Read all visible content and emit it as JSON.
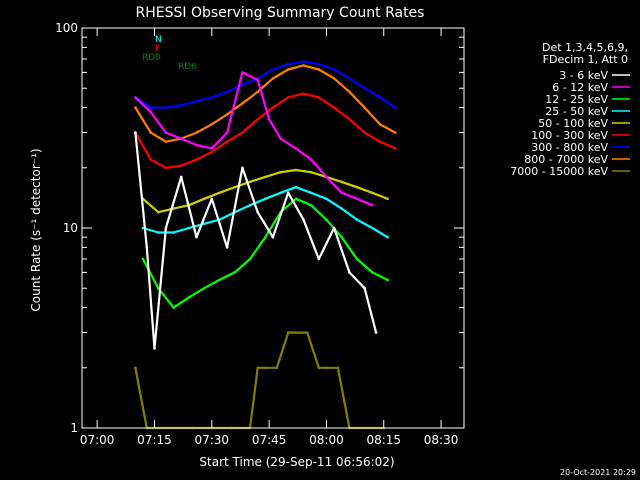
{
  "chart_data": {
    "type": "line",
    "title": "RHESSI Observing Summary Count Rates",
    "xlabel": "Start Time (29-Sep-11 06:56:02)",
    "ylabel": "Count Rate (s⁻¹ detector⁻¹)",
    "yscale": "log",
    "ylim": [
      1,
      100
    ],
    "xlim": [
      "06:56:02",
      "08:36:00"
    ],
    "x_ticks": [
      "07:00",
      "07:15",
      "07:30",
      "07:45",
      "08:00",
      "08:15",
      "08:30"
    ],
    "y_ticks": [
      "1",
      "10",
      "100"
    ],
    "legend_position": "right",
    "legend_header": [
      "Det 1,3,4,5,6,9,",
      "FDecim 1, Att 0"
    ],
    "flags": [
      {
        "label": "N",
        "color": "#00ffff"
      },
      {
        "label": "F",
        "color": "#ff0000"
      },
      {
        "label": "RD0",
        "color": "#008000"
      },
      {
        "label": "RD6",
        "color": "#008000"
      }
    ],
    "footer": "20-Oct-2021 20:29",
    "series": [
      {
        "name": "3 - 6 keV",
        "color": "#ffffff",
        "x": [
          "07:10",
          "07:13",
          "07:15",
          "07:18",
          "07:22",
          "07:26",
          "07:30",
          "07:34",
          "07:38",
          "07:42",
          "07:46",
          "07:50",
          "07:54",
          "07:58",
          "08:02",
          "08:06",
          "08:10",
          "08:13"
        ],
        "y": [
          30,
          8,
          2.5,
          10,
          18,
          9,
          14,
          8,
          20,
          12,
          9,
          15,
          11,
          7,
          10,
          6,
          5,
          3
        ]
      },
      {
        "name": "6 - 12 keV",
        "color": "#ff00ff",
        "x": [
          "07:10",
          "07:14",
          "07:18",
          "07:22",
          "07:26",
          "07:30",
          "07:34",
          "07:38",
          "07:42",
          "07:45",
          "07:48",
          "07:52",
          "07:56",
          "08:00",
          "08:04",
          "08:08",
          "08:12"
        ],
        "y": [
          45,
          38,
          30,
          28,
          26,
          25,
          30,
          60,
          55,
          35,
          28,
          25,
          22,
          18,
          15,
          14,
          13
        ]
      },
      {
        "name": "12 - 25 keV",
        "color": "#00ff00",
        "x": [
          "07:12",
          "07:16",
          "07:20",
          "07:24",
          "07:28",
          "07:32",
          "07:36",
          "07:40",
          "07:44",
          "07:48",
          "07:52",
          "07:56",
          "08:00",
          "08:04",
          "08:08",
          "08:12",
          "08:16"
        ],
        "y": [
          7,
          5,
          4,
          4.5,
          5,
          5.5,
          6,
          7,
          9,
          12,
          14,
          13,
          11,
          9,
          7,
          6,
          5.5
        ]
      },
      {
        "name": "25 - 50 keV",
        "color": "#00ffff",
        "x": [
          "07:12",
          "07:16",
          "07:20",
          "07:24",
          "07:28",
          "07:32",
          "07:36",
          "07:40",
          "07:44",
          "07:48",
          "07:52",
          "07:56",
          "08:00",
          "08:04",
          "08:08",
          "08:12",
          "08:16"
        ],
        "y": [
          10,
          9.5,
          9.5,
          10,
          10.5,
          11,
          12,
          13,
          14,
          15,
          16,
          15,
          14,
          12.5,
          11,
          10,
          9
        ]
      },
      {
        "name": "50 - 100 keV",
        "color": "#d0d000",
        "x": [
          "07:12",
          "07:16",
          "07:20",
          "07:24",
          "07:28",
          "07:32",
          "07:36",
          "07:40",
          "07:44",
          "07:48",
          "07:52",
          "07:56",
          "08:00",
          "08:04",
          "08:08",
          "08:12",
          "08:16"
        ],
        "y": [
          14,
          12,
          12.5,
          13,
          14,
          15,
          16,
          17,
          18,
          19,
          19.5,
          19,
          18,
          17,
          16,
          15,
          14
        ]
      },
      {
        "name": "100 - 300 keV",
        "color": "#ff0000",
        "x": [
          "07:10",
          "07:14",
          "07:18",
          "07:22",
          "07:26",
          "07:30",
          "07:34",
          "07:38",
          "07:42",
          "07:46",
          "07:50",
          "07:54",
          "07:58",
          "08:02",
          "08:06",
          "08:10",
          "08:14",
          "08:18"
        ],
        "y": [
          30,
          22,
          20,
          20.5,
          22,
          24,
          27,
          30,
          35,
          40,
          45,
          47,
          45,
          40,
          35,
          30,
          27,
          25
        ]
      },
      {
        "name": "300 - 800 keV",
        "color": "#0000ff",
        "x": [
          "07:10",
          "07:14",
          "07:18",
          "07:22",
          "07:26",
          "07:30",
          "07:34",
          "07:38",
          "07:42",
          "07:46",
          "07:50",
          "07:54",
          "07:58",
          "08:02",
          "08:06",
          "08:10",
          "08:14",
          "08:18"
        ],
        "y": [
          45,
          40,
          40,
          41,
          43,
          45,
          48,
          52,
          56,
          62,
          66,
          68,
          66,
          62,
          56,
          50,
          45,
          40
        ]
      },
      {
        "name": "800 - 7000 keV",
        "color": "#ff8000",
        "x": [
          "07:10",
          "07:14",
          "07:18",
          "07:22",
          "07:26",
          "07:30",
          "07:34",
          "07:38",
          "07:42",
          "07:46",
          "07:50",
          "07:54",
          "07:58",
          "08:02",
          "08:06",
          "08:10",
          "08:14",
          "08:18"
        ],
        "y": [
          40,
          30,
          27,
          28,
          30,
          33,
          37,
          42,
          48,
          56,
          62,
          65,
          62,
          56,
          48,
          40,
          33,
          30
        ]
      },
      {
        "name": "7000 - 15000 keV",
        "color": "#808000",
        "x": [
          "07:10",
          "07:13",
          "07:16",
          "07:25",
          "07:30",
          "07:35",
          "07:40",
          "07:42",
          "07:44",
          "07:47",
          "07:50",
          "07:52",
          "07:55",
          "07:58",
          "08:00",
          "08:03",
          "08:06",
          "08:10",
          "08:15"
        ],
        "y": [
          2,
          1,
          1,
          1,
          1,
          1,
          1,
          2,
          2,
          2,
          3,
          3,
          3,
          2,
          2,
          2,
          1,
          1,
          1
        ]
      }
    ]
  }
}
